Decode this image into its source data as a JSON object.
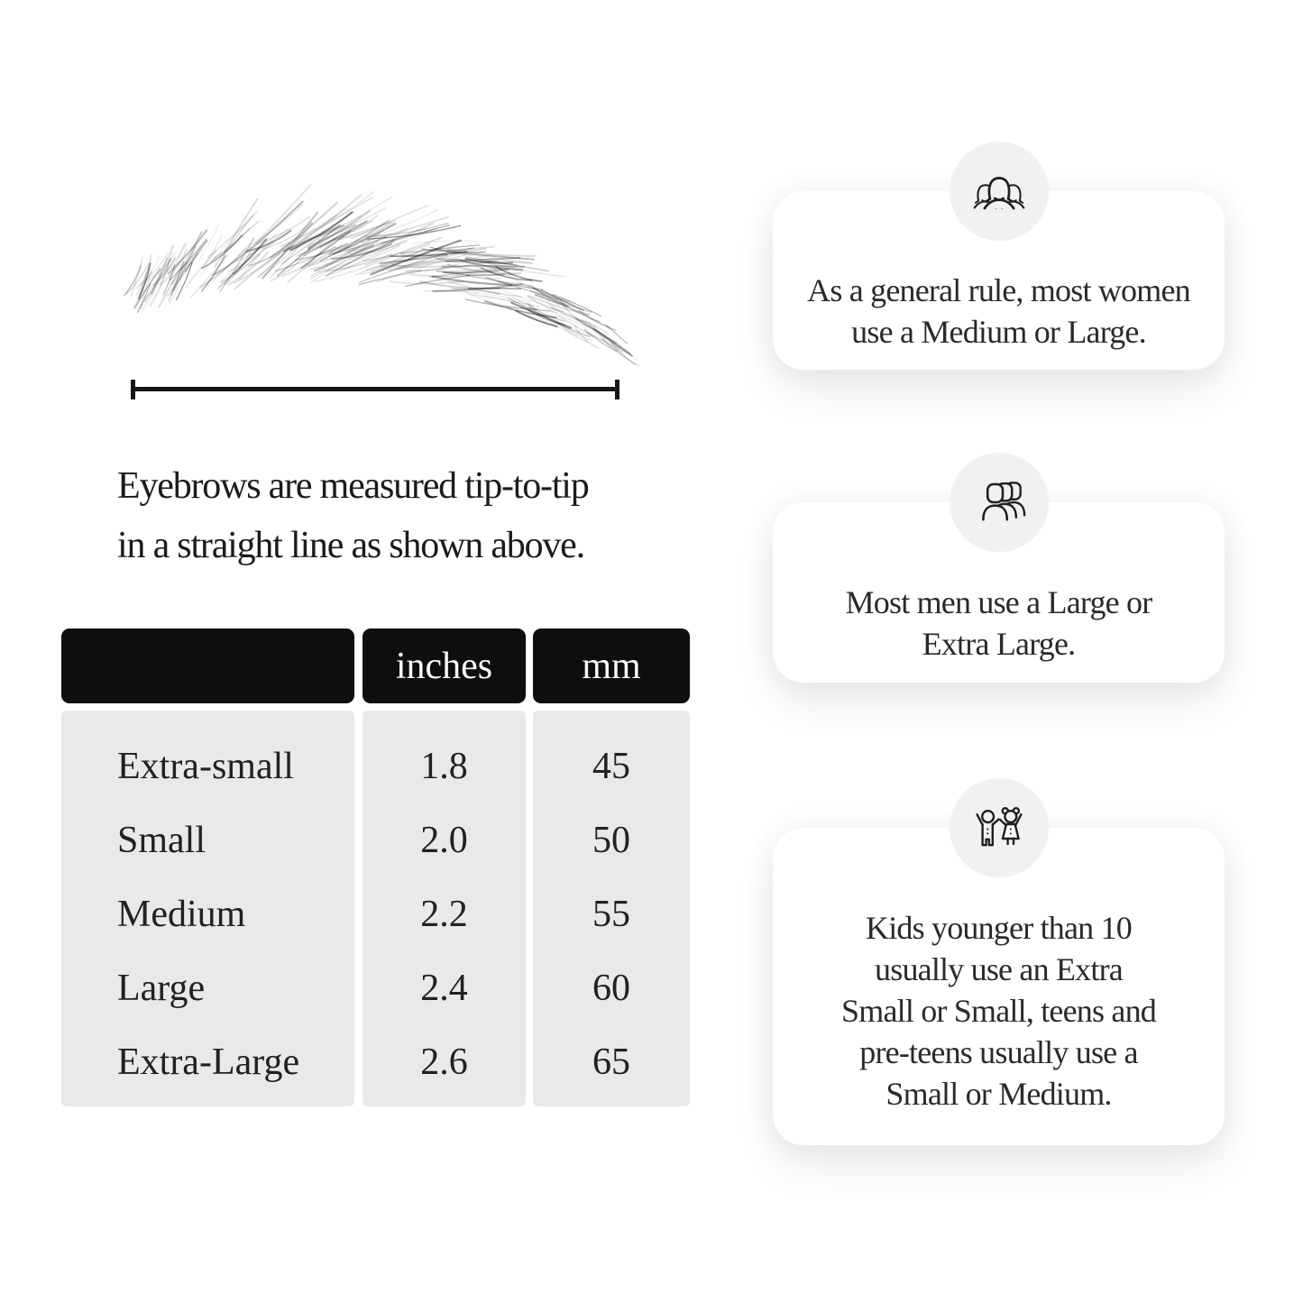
{
  "measurement_diagram": {
    "illustration_icon": "eyebrow-sketch-illustration",
    "ruler_icon": "tip-to-tip-measurement-line",
    "caption_lines": [
      "Eyebrows are measured tip-to-tip",
      "in a straight line as shown above."
    ],
    "caption_text": "Eyebrows are measured tip-to-tip in a straight line as shown above."
  },
  "size_table": {
    "columns": [
      "",
      "inches",
      "mm"
    ],
    "rows": [
      {
        "size": "Extra-small",
        "inches": "1.8",
        "mm": "45"
      },
      {
        "size": "Small",
        "inches": "2.0",
        "mm": "50"
      },
      {
        "size": "Medium",
        "inches": "2.2",
        "mm": "55"
      },
      {
        "size": "Large",
        "inches": "2.4",
        "mm": "60"
      },
      {
        "size": "Extra-Large",
        "inches": "2.6",
        "mm": "65"
      }
    ]
  },
  "info_cards": [
    {
      "icon": "women-group-icon",
      "text": "As a general rule, most women use a Medium or Large.",
      "lines": [
        "As a general rule, most women",
        "use a Medium or Large."
      ]
    },
    {
      "icon": "men-group-icon",
      "text": "Most men use a Large or Extra Large.",
      "lines": [
        "Most men use a Large or",
        "Extra Large."
      ]
    },
    {
      "icon": "kids-icon",
      "text": "Kids younger than 10 usually use an Extra Small or Small, teens and pre-teens usually use a Small or Medium.",
      "lines": [
        "Kids younger than 10",
        "usually use an Extra",
        "Small or Small, teens and",
        "pre-teens usually use a",
        "Small or Medium."
      ]
    }
  ],
  "colors": {
    "page_background": "#ffffff",
    "table_header_bg": "#0e0e0e",
    "table_header_text": "#fbfbfb",
    "table_body_bg": "#e9e9e9",
    "icon_circle_bg": "#f1f1f1",
    "card_bg": "#ffffff",
    "ruler_color": "#161616",
    "text_color": "#212121"
  }
}
